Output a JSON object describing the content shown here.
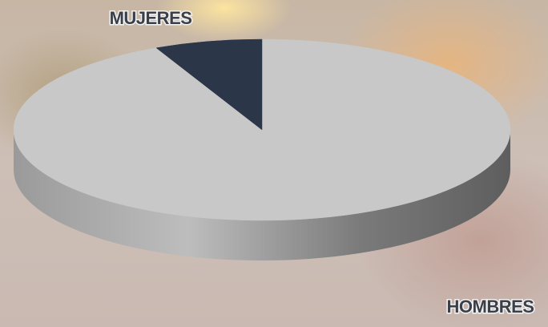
{
  "chart_data": {
    "type": "pie",
    "categories": [
      "HOMBRES",
      "MUJERES"
    ],
    "values": [
      93,
      7
    ],
    "colors": [
      "#c8c8c8",
      "#2b3649"
    ]
  }
}
